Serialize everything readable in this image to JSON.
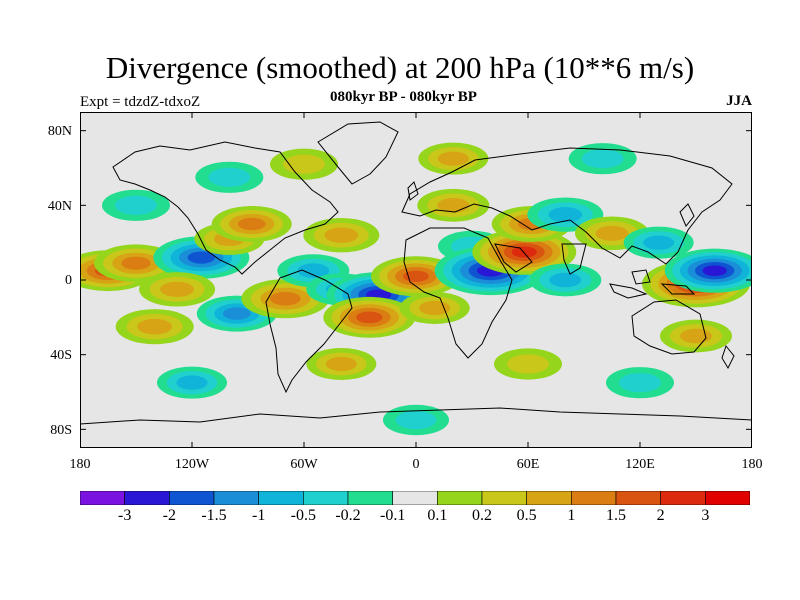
{
  "title": "Divergence (smoothed) at 200 hPa (10**6 m/s)",
  "expt_label": "Expt = tdzdZ-tdxoZ",
  "period_label": "080kyr BP - 080kyr BP",
  "season_label": "JJA",
  "map": {
    "lat_ticks": [
      "80N",
      "40N",
      "0",
      "40S",
      "80S"
    ],
    "lon_ticks": [
      "180",
      "120W",
      "60W",
      "0",
      "60E",
      "120E",
      "180"
    ],
    "lat_range": [
      -90,
      90
    ],
    "lon_range": [
      -180,
      180
    ]
  },
  "colorbar": {
    "labels": [
      "-3",
      "-2",
      "-1.5",
      "-1",
      "-0.5",
      "-0.2",
      "-0.1",
      "0.1",
      "0.2",
      "0.5",
      "1",
      "1.5",
      "2",
      "3"
    ],
    "colors": [
      "#7a12e0",
      "#2a17d6",
      "#0f55d2",
      "#1a8fd8",
      "#10b4d8",
      "#20d0cf",
      "#22dd90",
      "#e6e6e6",
      "#95d51c",
      "#c9c71a",
      "#d7a416",
      "#da7d12",
      "#d95410",
      "#dc2a0e",
      "#e00000"
    ]
  },
  "colors": {
    "neutral": "#e6e6e6",
    "coast": "#000000"
  },
  "chart_data": {
    "type": "heatmap",
    "title": "Divergence (smoothed) at 200 hPa (10**6 m/s)",
    "xlabel": "",
    "ylabel": "",
    "xlim": [
      -180,
      180
    ],
    "ylim": [
      -90,
      90
    ],
    "levels": [
      -3,
      -2,
      -1.5,
      -1,
      -0.5,
      -0.2,
      -0.1,
      0.1,
      0.2,
      0.5,
      1,
      1.5,
      2,
      3
    ],
    "features": [
      {
        "lon": -165,
        "lat": 5,
        "value": 1.6
      },
      {
        "lon": -150,
        "lat": 9,
        "value": 1.2
      },
      {
        "lon": -115,
        "lat": 12,
        "value": -1.8
      },
      {
        "lon": -128,
        "lat": -5,
        "value": 0.8
      },
      {
        "lon": -140,
        "lat": -25,
        "value": 0.9
      },
      {
        "lon": -100,
        "lat": 22,
        "value": 0.5
      },
      {
        "lon": -88,
        "lat": 30,
        "value": 1.0
      },
      {
        "lon": -96,
        "lat": -18,
        "value": -1.0
      },
      {
        "lon": -70,
        "lat": -10,
        "value": 1.4
      },
      {
        "lon": -55,
        "lat": 5,
        "value": -0.6
      },
      {
        "lon": -40,
        "lat": -5,
        "value": -0.5
      },
      {
        "lon": -40,
        "lat": 24,
        "value": 0.8
      },
      {
        "lon": -20,
        "lat": -8,
        "value": -2.2
      },
      {
        "lon": -25,
        "lat": -20,
        "value": 1.6
      },
      {
        "lon": 0,
        "lat": 2,
        "value": 1.5
      },
      {
        "lon": 10,
        "lat": -15,
        "value": 0.5
      },
      {
        "lon": 20,
        "lat": 40,
        "value": 0.6
      },
      {
        "lon": 30,
        "lat": 18,
        "value": -0.4
      },
      {
        "lon": 40,
        "lat": 5,
        "value": -2.6
      },
      {
        "lon": 58,
        "lat": 15,
        "value": 2.2
      },
      {
        "lon": 62,
        "lat": 30,
        "value": 1.0
      },
      {
        "lon": 80,
        "lat": 35,
        "value": -0.8
      },
      {
        "lon": 80,
        "lat": 0,
        "value": -0.6
      },
      {
        "lon": 105,
        "lat": 25,
        "value": 0.7
      },
      {
        "lon": 150,
        "lat": -2,
        "value": 2.4
      },
      {
        "lon": 160,
        "lat": 5,
        "value": -2.0
      },
      {
        "lon": 130,
        "lat": 20,
        "value": -0.5
      },
      {
        "lon": 150,
        "lat": -30,
        "value": 0.6
      },
      {
        "lon": -100,
        "lat": 55,
        "value": -0.4
      },
      {
        "lon": -60,
        "lat": 62,
        "value": 0.4
      },
      {
        "lon": 20,
        "lat": 65,
        "value": 0.5
      },
      {
        "lon": 100,
        "lat": 65,
        "value": -0.4
      },
      {
        "lon": -120,
        "lat": -55,
        "value": -0.5
      },
      {
        "lon": -40,
        "lat": -45,
        "value": 0.5
      },
      {
        "lon": 60,
        "lat": -45,
        "value": 0.4
      },
      {
        "lon": 120,
        "lat": -55,
        "value": -0.4
      },
      {
        "lon": -150,
        "lat": 40,
        "value": -0.4
      },
      {
        "lon": 0,
        "lat": -75,
        "value": -0.3
      }
    ]
  }
}
